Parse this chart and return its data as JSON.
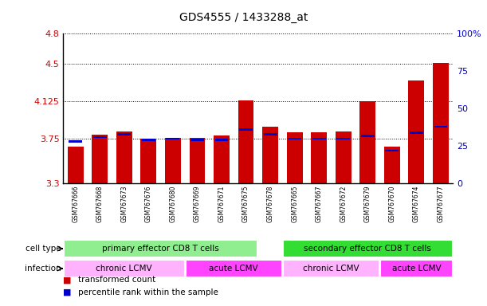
{
  "title": "GDS4555 / 1433288_at",
  "samples": [
    "GSM767666",
    "GSM767668",
    "GSM767673",
    "GSM767676",
    "GSM767680",
    "GSM767669",
    "GSM767671",
    "GSM767675",
    "GSM767678",
    "GSM767665",
    "GSM767667",
    "GSM767672",
    "GSM767679",
    "GSM767670",
    "GSM767674",
    "GSM767677"
  ],
  "red_values": [
    3.67,
    3.79,
    3.82,
    3.75,
    3.76,
    3.76,
    3.78,
    4.13,
    3.87,
    3.81,
    3.81,
    3.82,
    4.125,
    3.67,
    4.33,
    4.51
  ],
  "blue_percentiles": [
    28,
    31,
    33,
    29,
    30,
    29,
    29,
    36,
    33,
    30,
    30,
    30,
    32,
    22,
    34,
    38
  ],
  "ymin": 3.3,
  "ymax": 4.8,
  "yticks": [
    3.3,
    3.75,
    4.125,
    4.5,
    4.8
  ],
  "ytick_labels": [
    "3.3",
    "3.75",
    "4.125",
    "4.5",
    "4.8"
  ],
  "right_yticks": [
    0,
    25,
    50,
    75,
    100
  ],
  "right_ytick_labels": [
    "0",
    "25",
    "50",
    "75",
    "100%"
  ],
  "cell_type_groups": [
    {
      "label": "primary effector CD8 T cells",
      "start": 0,
      "end": 8,
      "color": "#90EE90"
    },
    {
      "label": "secondary effector CD8 T cells",
      "start": 9,
      "end": 16,
      "color": "#33DD33"
    }
  ],
  "infection_groups": [
    {
      "label": "chronic LCMV",
      "start": 0,
      "end": 5,
      "color": "#FFB3FF"
    },
    {
      "label": "acute LCMV",
      "start": 5,
      "end": 9,
      "color": "#FF44FF"
    },
    {
      "label": "chronic LCMV",
      "start": 9,
      "end": 13,
      "color": "#FFB3FF"
    },
    {
      "label": "acute LCMV",
      "start": 13,
      "end": 16,
      "color": "#FF44FF"
    }
  ],
  "bar_color_red": "#CC0000",
  "bar_color_blue": "#0000CC",
  "bar_width": 0.65,
  "tick_color_left": "#CC0000",
  "tick_color_right": "#0000CC"
}
